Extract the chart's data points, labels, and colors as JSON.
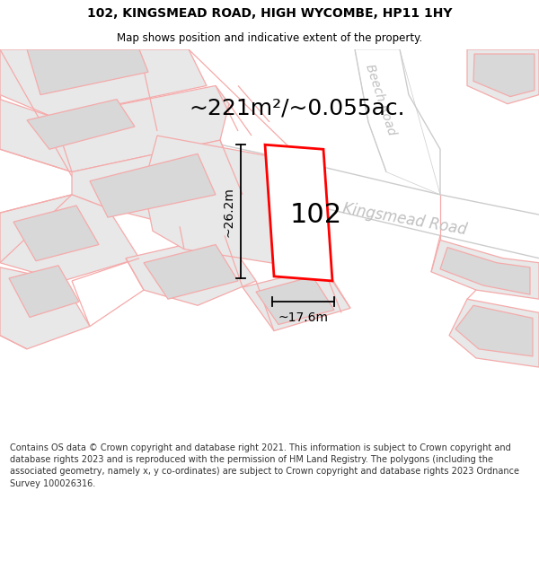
{
  "title": "102, KINGSMEAD ROAD, HIGH WYCOMBE, HP11 1HY",
  "subtitle": "Map shows position and indicative extent of the property.",
  "area_label": "~221m²/~0.055ac.",
  "number_label": "102",
  "width_label": "~17.6m",
  "height_label": "~26.2m",
  "road_label_1": "Kingsmead Road",
  "road_label_2": "Beech Road",
  "footer": "Contains OS data © Crown copyright and database right 2021. This information is subject to Crown copyright and database rights 2023 and is reproduced with the permission of HM Land Registry. The polygons (including the associated geometry, namely x, y co-ordinates) are subject to Crown copyright and database rights 2023 Ordnance Survey 100026316.",
  "bg_color": "#ffffff",
  "parcel_fill": "#e8e8e8",
  "building_fill": "#d8d8d8",
  "road_fill": "#ffffff",
  "boundary_color": "#f5aaaa",
  "road_border_color": "#cccccc",
  "red_outline": "#ff0000",
  "dim_color": "#000000",
  "road_text_color": "#c0c0c0",
  "title_color": "#000000",
  "footer_color": "#333333",
  "map_xlim": [
    0,
    600
  ],
  "map_ylim": [
    0,
    430
  ],
  "title_fontsize": 10,
  "subtitle_fontsize": 8.5,
  "area_fontsize": 18,
  "number_fontsize": 22,
  "dim_fontsize": 10,
  "road_fontsize": 12,
  "beech_fontsize": 10,
  "footer_fontsize": 7
}
